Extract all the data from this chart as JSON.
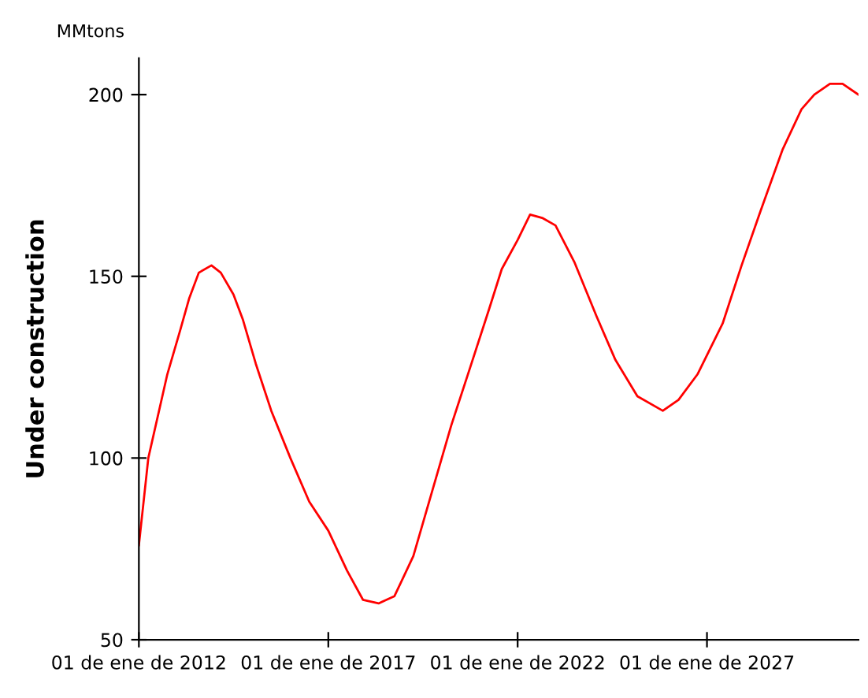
{
  "chart_data": {
    "type": "line",
    "ylabel": "Under construction",
    "annotations": [
      "MMtons"
    ],
    "x": [
      "2012-01",
      "2012-04",
      "2012-10",
      "2013-02",
      "2013-05",
      "2013-08",
      "2013-12",
      "2014-03",
      "2014-07",
      "2014-10",
      "2015-02",
      "2015-07",
      "2016-01",
      "2016-07",
      "2017-01",
      "2017-07",
      "2017-12",
      "2018-05",
      "2018-10",
      "2019-04",
      "2019-10",
      "2020-04",
      "2020-10",
      "2021-04",
      "2021-08",
      "2022-01",
      "2022-05",
      "2022-09",
      "2023-01",
      "2023-07",
      "2024-02",
      "2024-08",
      "2025-03",
      "2025-11",
      "2026-04",
      "2026-10",
      "2027-06",
      "2027-12",
      "2028-06",
      "2029-01",
      "2029-07",
      "2029-11",
      "2030-04",
      "2030-08",
      "2031-01"
    ],
    "series": [
      {
        "color": "#ff0000",
        "values": [
          76,
          100,
          123,
          135,
          144,
          151,
          153,
          151,
          145,
          138,
          126,
          113,
          100,
          88,
          80,
          69,
          61,
          60,
          62,
          73,
          91,
          109,
          125,
          141,
          152,
          160,
          167,
          166,
          164,
          154,
          139,
          127,
          117,
          113,
          116,
          123,
          137,
          153,
          168,
          185,
          196,
          200,
          203,
          203,
          200
        ]
      }
    ],
    "xlim": [
      "2012-01-01",
      "2031-01-01"
    ],
    "xticks": [
      {
        "value": "2012-01-01",
        "label": "01 de ene de 2012"
      },
      {
        "value": "2017-01-01",
        "label": "01 de ene de 2017"
      },
      {
        "value": "2022-01-01",
        "label": "01 de ene de 2022"
      },
      {
        "value": "2027-01-01",
        "label": "01 de ene de 2027"
      }
    ],
    "ylim": [
      50,
      210
    ],
    "yticks": [
      50,
      100,
      150,
      200
    ],
    "grid": false,
    "legend": false,
    "line_style": "solid",
    "marker": "none"
  }
}
